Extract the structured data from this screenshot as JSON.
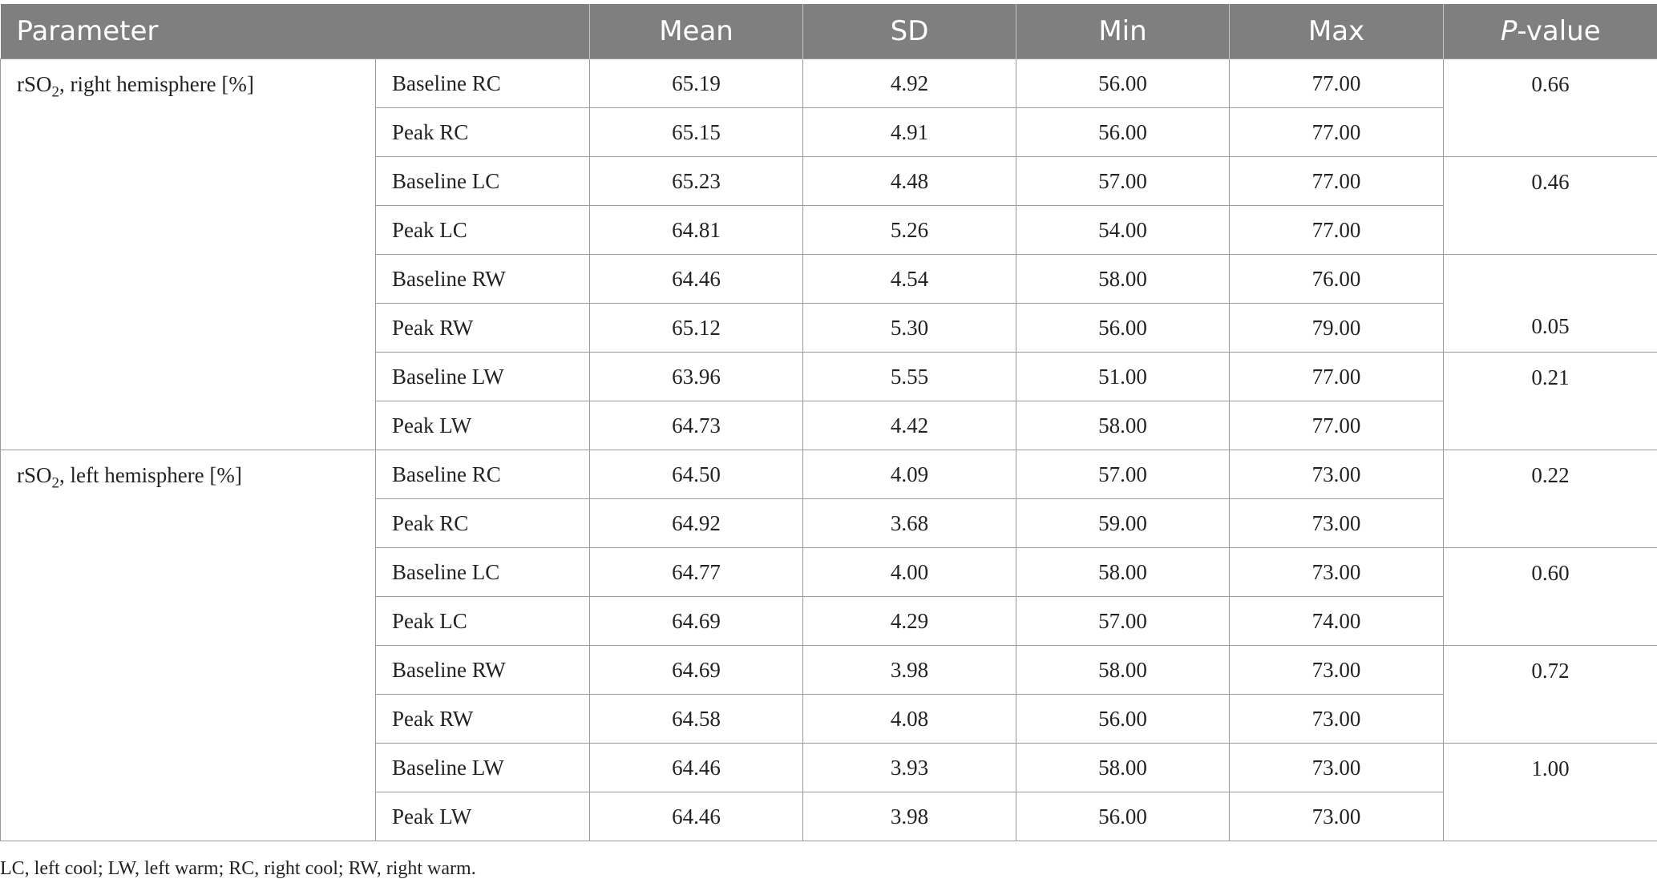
{
  "header": {
    "parameter": "Parameter",
    "mean": "Mean",
    "sd": "SD",
    "min": "Min",
    "max": "Max",
    "p_italic": "P",
    "p_suffix": "-value"
  },
  "groups": [
    {
      "label_prefix": "rSO",
      "label_sub": "2",
      "label_suffix": ", right hemisphere [%]",
      "rows": [
        {
          "condition": "Baseline RC",
          "mean": "65.19",
          "sd": "4.92",
          "min": "56.00",
          "max": "77.00"
        },
        {
          "condition": "Peak RC",
          "mean": "65.15",
          "sd": "4.91",
          "min": "56.00",
          "max": "77.00"
        },
        {
          "condition": "Baseline LC",
          "mean": "65.23",
          "sd": "4.48",
          "min": "57.00",
          "max": "77.00"
        },
        {
          "condition": "Peak LC",
          "mean": "64.81",
          "sd": "5.26",
          "min": "54.00",
          "max": "77.00"
        },
        {
          "condition": "Baseline RW",
          "mean": "64.46",
          "sd": "4.54",
          "min": "58.00",
          "max": "76.00"
        },
        {
          "condition": "Peak RW",
          "mean": "65.12",
          "sd": "5.30",
          "min": "56.00",
          "max": "79.00"
        },
        {
          "condition": "Baseline LW",
          "mean": "63.96",
          "sd": "5.55",
          "min": "51.00",
          "max": "77.00"
        },
        {
          "condition": "Peak LW",
          "mean": "64.73",
          "sd": "4.42",
          "min": "58.00",
          "max": "77.00"
        }
      ],
      "p_values": [
        "0.66",
        "0.46",
        "0.05",
        "0.21"
      ]
    },
    {
      "label_prefix": "rSO",
      "label_sub": "2",
      "label_suffix": ", left hemisphere [%]",
      "rows": [
        {
          "condition": "Baseline RC",
          "mean": "64.50",
          "sd": "4.09",
          "min": "57.00",
          "max": "73.00"
        },
        {
          "condition": "Peak RC",
          "mean": "64.92",
          "sd": "3.68",
          "min": "59.00",
          "max": "73.00"
        },
        {
          "condition": "Baseline LC",
          "mean": "64.77",
          "sd": "4.00",
          "min": "58.00",
          "max": "73.00"
        },
        {
          "condition": "Peak LC",
          "mean": "64.69",
          "sd": "4.29",
          "min": "57.00",
          "max": "74.00"
        },
        {
          "condition": "Baseline RW",
          "mean": "64.69",
          "sd": "3.98",
          "min": "58.00",
          "max": "73.00"
        },
        {
          "condition": "Peak RW",
          "mean": "64.58",
          "sd": "4.08",
          "min": "56.00",
          "max": "73.00"
        },
        {
          "condition": "Baseline LW",
          "mean": "64.46",
          "sd": "3.93",
          "min": "58.00",
          "max": "73.00"
        },
        {
          "condition": "Peak LW",
          "mean": "64.46",
          "sd": "3.98",
          "min": "56.00",
          "max": "73.00"
        }
      ],
      "p_values": [
        "0.22",
        "0.60",
        "0.72",
        "1.00"
      ]
    }
  ],
  "footnote": "LC, left cool; LW, left warm; RC, right cool; RW, right warm."
}
